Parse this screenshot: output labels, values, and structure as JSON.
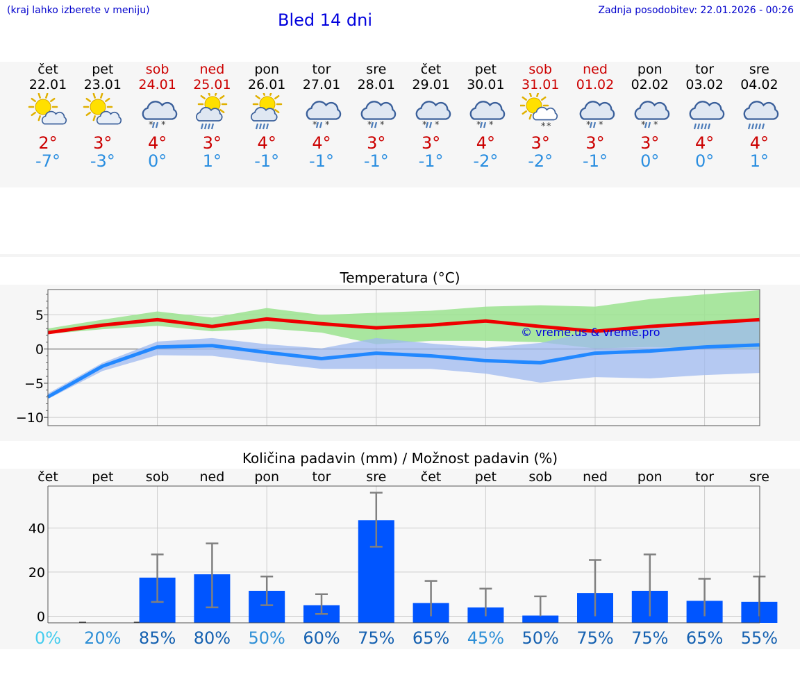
{
  "header": {
    "left_note": "(kraj lahko izberete v meniju)",
    "title": "Bled 14 dni",
    "updated": "Zadnja posodobitev: 22.01.2026 - 00:26"
  },
  "days": [
    {
      "name": "čet",
      "date": "22.01",
      "weekend": false,
      "icon": "partly-sunny-icon",
      "tmax": "2°",
      "tmin": "-7°"
    },
    {
      "name": "pet",
      "date": "23.01",
      "weekend": false,
      "icon": "partly-sunny-icon",
      "tmax": "3°",
      "tmin": "-3°"
    },
    {
      "name": "sob",
      "date": "24.01",
      "weekend": true,
      "icon": "snow-rain-cloud-icon",
      "tmax": "4°",
      "tmin": "0°"
    },
    {
      "name": "ned",
      "date": "25.01",
      "weekend": true,
      "icon": "sun-rain-icon",
      "tmax": "3°",
      "tmin": "1°"
    },
    {
      "name": "pon",
      "date": "26.01",
      "weekend": false,
      "icon": "sun-rain-icon",
      "tmax": "4°",
      "tmin": "-1°"
    },
    {
      "name": "tor",
      "date": "27.01",
      "weekend": false,
      "icon": "snow-rain-cloud-icon",
      "tmax": "4°",
      "tmin": "-1°"
    },
    {
      "name": "sre",
      "date": "28.01",
      "weekend": false,
      "icon": "snow-rain-cloud-icon",
      "tmax": "3°",
      "tmin": "-1°"
    },
    {
      "name": "čet",
      "date": "29.01",
      "weekend": false,
      "icon": "snow-rain-cloud-icon",
      "tmax": "3°",
      "tmin": "-1°"
    },
    {
      "name": "pet",
      "date": "30.01",
      "weekend": false,
      "icon": "snow-rain-cloud-icon",
      "tmax": "4°",
      "tmin": "-2°"
    },
    {
      "name": "sob",
      "date": "31.01",
      "weekend": true,
      "icon": "sun-snow-icon",
      "tmax": "3°",
      "tmin": "-2°"
    },
    {
      "name": "ned",
      "date": "01.02",
      "weekend": true,
      "icon": "snow-rain-cloud-icon",
      "tmax": "3°",
      "tmin": "-1°"
    },
    {
      "name": "pon",
      "date": "02.02",
      "weekend": false,
      "icon": "snow-rain-cloud-icon",
      "tmax": "3°",
      "tmin": "0°"
    },
    {
      "name": "tor",
      "date": "03.02",
      "weekend": false,
      "icon": "rain-cloud-icon",
      "tmax": "4°",
      "tmin": "0°"
    },
    {
      "name": "sre",
      "date": "04.02",
      "weekend": false,
      "icon": "rain-cloud-icon",
      "tmax": "4°",
      "tmin": "1°"
    }
  ],
  "colors": {
    "tmax_line": "#ee0000",
    "tmin_line": "#2288ff",
    "tmax_band": "#9be38f",
    "tmin_band": "#9fbaf0",
    "bar": "#0055ff",
    "error": "#808080",
    "watermark": "#0000dd"
  },
  "chart_data": [
    {
      "type": "line",
      "title": "Temperatura (°C)",
      "ylabel": "",
      "ylim": [
        -11.2,
        8.7
      ],
      "yticks": [
        "−10",
        "−5",
        "0",
        "5"
      ],
      "ytick_values": [
        -10,
        -5,
        0,
        5
      ],
      "watermark": "© vreme.us & vreme.pro",
      "x": [
        0,
        1,
        2,
        3,
        4,
        5,
        6,
        7,
        8,
        9,
        10,
        11,
        12,
        13
      ],
      "series": [
        {
          "name": "max",
          "values": [
            2.4,
            3.5,
            4.3,
            3.3,
            4.4,
            3.7,
            3.1,
            3.5,
            4.1,
            3.3,
            2.6,
            3.3,
            3.8,
            4.3
          ],
          "band_low": [
            2.2,
            2.9,
            3.4,
            2.6,
            3.0,
            2.4,
            0.7,
            1.2,
            1.2,
            1.0,
            0.1,
            0.3,
            0.1,
            0.0
          ],
          "band_high": [
            3.0,
            4.3,
            5.5,
            4.6,
            6.0,
            5.0,
            5.3,
            5.6,
            6.2,
            6.4,
            6.2,
            7.3,
            8.0,
            8.6
          ]
        },
        {
          "name": "min",
          "values": [
            -7.0,
            -2.5,
            0.3,
            0.5,
            -0.5,
            -1.4,
            -0.6,
            -1.0,
            -1.7,
            -2.0,
            -0.6,
            -0.3,
            0.3,
            0.6
          ],
          "band_low": [
            -7.3,
            -3.2,
            -0.9,
            -1.0,
            -2.0,
            -2.9,
            -2.9,
            -2.9,
            -3.6,
            -4.9,
            -4.1,
            -4.3,
            -3.8,
            -3.5
          ],
          "band_high": [
            -6.5,
            -2.0,
            1.1,
            1.6,
            0.7,
            0.1,
            1.6,
            0.8,
            0.2,
            0.9,
            2.7,
            3.6,
            3.8,
            4.2
          ]
        }
      ]
    },
    {
      "type": "bar",
      "title": "Količina padavin (mm) / Možnost padavin (%)",
      "categories": [
        "čet",
        "pet",
        "sob",
        "ned",
        "pon",
        "tor",
        "sre",
        "čet",
        "pet",
        "sob",
        "ned",
        "pon",
        "tor",
        "sre"
      ],
      "values": [
        0,
        0,
        17.5,
        19,
        11.5,
        5,
        43.5,
        6,
        4,
        0.3,
        10.5,
        11.5,
        7,
        6.5
      ],
      "err_low": [
        0,
        0,
        6.5,
        4,
        5,
        1,
        31.5,
        0,
        0,
        0,
        0,
        0,
        0,
        0
      ],
      "err_high": [
        0,
        0,
        28,
        33,
        18,
        10,
        56,
        16,
        12.5,
        9,
        25.5,
        28,
        17,
        18
      ],
      "ylim": [
        -3,
        59
      ],
      "yticks": [
        "0",
        "20",
        "40"
      ],
      "ytick_values": [
        0,
        20,
        40
      ],
      "probabilities": [
        "0%",
        "20%",
        "85%",
        "80%",
        "50%",
        "60%",
        "75%",
        "65%",
        "45%",
        "50%",
        "75%",
        "75%",
        "65%",
        "55%"
      ],
      "probability_colors": [
        "#44ccee",
        "#2e8fd6",
        "#1460b0",
        "#1460b0",
        "#2e8fd6",
        "#1460b0",
        "#1460b0",
        "#1460b0",
        "#2e8fd6",
        "#1460b0",
        "#1460b0",
        "#1460b0",
        "#1460b0",
        "#1460b0"
      ]
    }
  ]
}
